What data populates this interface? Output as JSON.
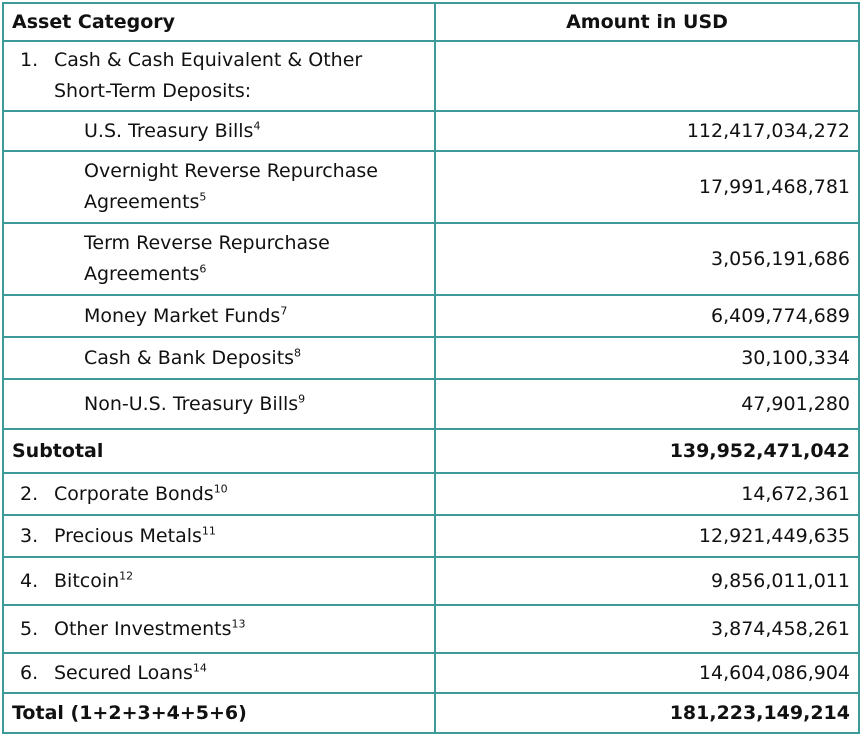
{
  "header": {
    "category": "Asset Category",
    "amount": "Amount in USD"
  },
  "section1": {
    "num": "1.",
    "label_line1": "Cash & Cash Equivalent & Other",
    "label_line2": "Short-Term Deposits:"
  },
  "sub_items": [
    {
      "label": "U.S. Treasury Bills",
      "note": "4",
      "amount": "112,417,034,272"
    },
    {
      "label_line1": "Overnight Reverse Repurchase",
      "label_line2": "Agreements",
      "note": "5",
      "amount": "17,991,468,781"
    },
    {
      "label_line1": "Term Reverse Repurchase",
      "label_line2": "Agreements",
      "note": "6",
      "amount": "3,056,191,686"
    },
    {
      "label": "Money Market Funds",
      "note": "7",
      "amount": "6,409,774,689"
    },
    {
      "label": "Cash & Bank Deposits",
      "note": "8",
      "amount": "30,100,334"
    },
    {
      "label": "Non-U.S. Treasury Bills",
      "note": "9",
      "amount": "47,901,280"
    }
  ],
  "subtotal": {
    "label": "Subtotal",
    "amount": "139,952,471,042"
  },
  "items": [
    {
      "num": "2.",
      "label": "Corporate Bonds",
      "note": "10",
      "amount": "14,672,361"
    },
    {
      "num": "3.",
      "label": "Precious Metals",
      "note": "11",
      "amount": "12,921,449,635"
    },
    {
      "num": "4.",
      "label": "Bitcoin",
      "note": "12",
      "amount": "9,856,011,011"
    },
    {
      "num": "5.",
      "label": "Other Investments",
      "note": "13",
      "amount": "3,874,458,261"
    },
    {
      "num": "6.",
      "label": "Secured Loans",
      "note": "14",
      "amount": "14,604,086,904"
    }
  ],
  "total": {
    "label": "Total (1+2+3+4+5+6)",
    "amount": "181,223,149,214"
  },
  "colors": {
    "border": "#3d9a9a"
  }
}
